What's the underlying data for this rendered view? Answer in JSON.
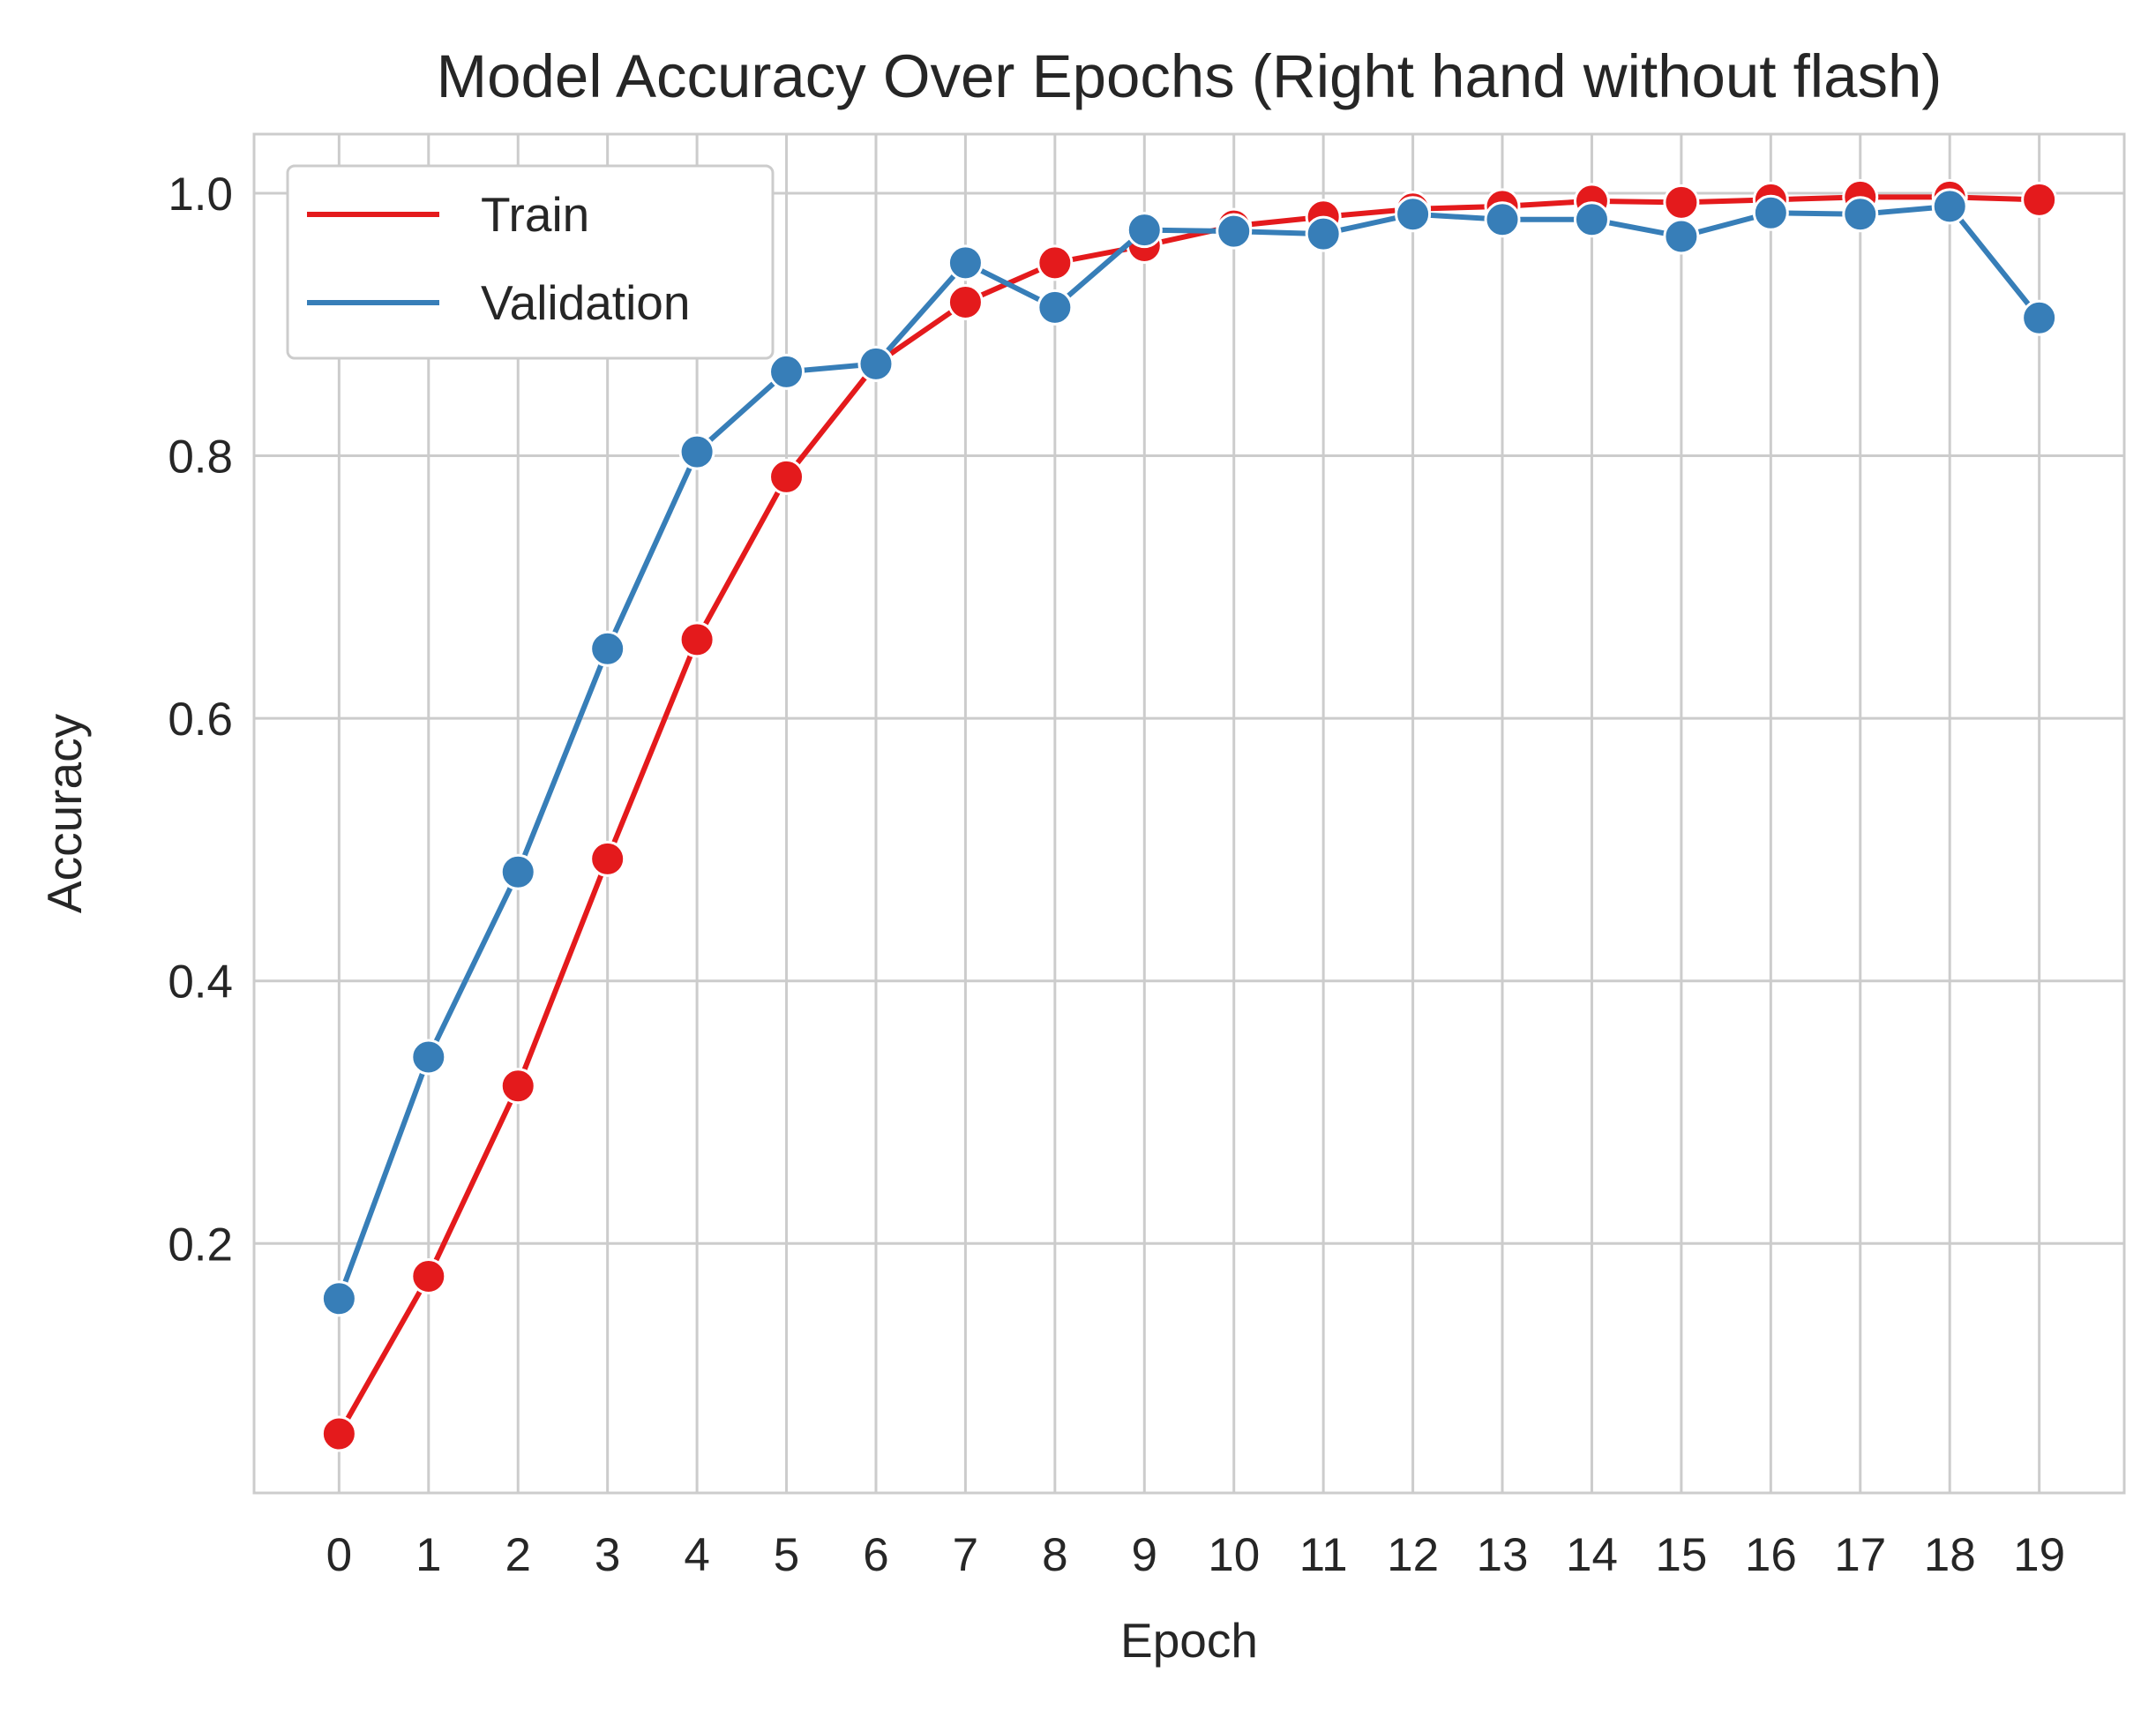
{
  "chart_data": {
    "type": "line",
    "title": "Model Accuracy Over Epochs (Right hand without flash)",
    "xlabel": "Epoch",
    "ylabel": "Accuracy",
    "x": [
      0,
      1,
      2,
      3,
      4,
      5,
      6,
      7,
      8,
      9,
      10,
      11,
      12,
      13,
      14,
      15,
      16,
      17,
      18,
      19
    ],
    "xlim": [
      -0.95,
      19.95
    ],
    "ylim": [
      0.01,
      1.045
    ],
    "yticks": [
      0.2,
      0.4,
      0.6,
      0.8,
      1.0
    ],
    "ytick_labels": [
      "0.2",
      "0.4",
      "0.6",
      "0.8",
      "1.0"
    ],
    "grid": true,
    "legend_position": "top-left",
    "series": [
      {
        "name": "Train",
        "color": "#e41a1c",
        "values": [
          0.055,
          0.175,
          0.32,
          0.493,
          0.66,
          0.784,
          0.87,
          0.917,
          0.947,
          0.96,
          0.975,
          0.982,
          0.988,
          0.99,
          0.994,
          0.993,
          0.995,
          0.997,
          0.997,
          0.995
        ]
      },
      {
        "name": "Validation",
        "color": "#377eb8",
        "values": [
          0.158,
          0.342,
          0.483,
          0.653,
          0.803,
          0.864,
          0.87,
          0.947,
          0.913,
          0.972,
          0.971,
          0.969,
          0.984,
          0.98,
          0.98,
          0.967,
          0.985,
          0.984,
          0.99,
          0.905
        ]
      }
    ]
  }
}
